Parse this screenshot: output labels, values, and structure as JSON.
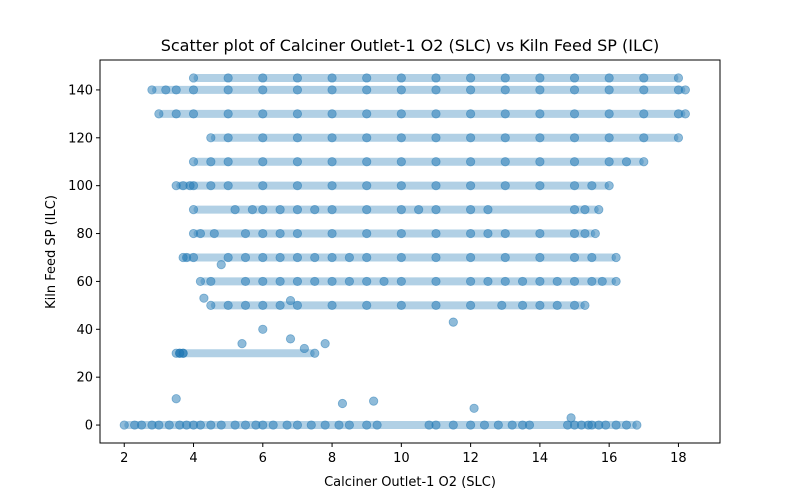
{
  "chart_data": {
    "type": "scatter",
    "title": "Scatter plot of Calciner Outlet-1 O2 (SLC) vs Kiln Feed  SP  (ILC)",
    "xlabel": "Calciner Outlet-1 O2 (SLC)",
    "ylabel": "Kiln Feed  SP  (ILC)",
    "xlim": [
      1.3,
      19.2
    ],
    "ylim": [
      -7.5,
      152.5
    ],
    "xticks": [
      2,
      4,
      6,
      8,
      10,
      12,
      14,
      16,
      18
    ],
    "yticks": [
      0,
      20,
      40,
      60,
      80,
      100,
      120,
      140
    ],
    "grid": false,
    "marker_color": "#1f77b4",
    "marker_alpha": 0.5,
    "series": [
      {
        "x": [
          2.0,
          2.3,
          2.5,
          2.8,
          3.0,
          3.3,
          3.6,
          3.8,
          4.0,
          4.2,
          4.5,
          4.8,
          5.2,
          5.5,
          5.8,
          6.0,
          6.3,
          6.7,
          7.0,
          7.4,
          7.8,
          8.2,
          8.5,
          9.0,
          9.3,
          10.8,
          11.0,
          11.5,
          12.0,
          12.4,
          12.8,
          13.2,
          13.5,
          13.7,
          14.8,
          15.0,
          15.2,
          15.4,
          15.5,
          15.7,
          15.9,
          16.2,
          16.5,
          16.8,
          3.6,
          3.7,
          3.7,
          4.5,
          5.0,
          5.5,
          6.0,
          6.5,
          7.0,
          8.0,
          9.0,
          10.0,
          11.0,
          12.0,
          12.9,
          13.5,
          14.0,
          14.5,
          15.0,
          15.3,
          4.2,
          4.5,
          5.5,
          6.0,
          6.5,
          7.0,
          7.5,
          8.0,
          8.5,
          9.0,
          9.5,
          10.0,
          11.0,
          12.0,
          12.5,
          13.0,
          13.5,
          14.0,
          14.5,
          15.0,
          15.5,
          15.8,
          16.2,
          3.7,
          3.8,
          4.0,
          5.0,
          5.5,
          6.0,
          6.5,
          7.0,
          7.5,
          8.0,
          8.5,
          9.0,
          10.0,
          11.0,
          12.0,
          13.0,
          14.0,
          15.0,
          15.5,
          16.2,
          4.0,
          4.2,
          4.6,
          5.5,
          6.0,
          6.5,
          7.0,
          8.0,
          9.0,
          10.0,
          11.0,
          12.0,
          12.5,
          13.0,
          14.0,
          15.0,
          15.3,
          15.6,
          4.0,
          5.2,
          5.7,
          6.0,
          6.5,
          7.0,
          7.5,
          8.0,
          9.0,
          10.0,
          10.5,
          11.0,
          12.0,
          12.5,
          15.0,
          15.3,
          15.7,
          3.5,
          3.7,
          3.9,
          4.0,
          4.5,
          5.0,
          6.0,
          7.0,
          8.0,
          9.0,
          10.0,
          11.0,
          12.0,
          13.0,
          14.0,
          15.0,
          15.5,
          16.0,
          4.0,
          4.5,
          5.0,
          6.0,
          7.0,
          8.0,
          9.0,
          10.0,
          11.0,
          12.0,
          13.0,
          14.0,
          15.0,
          16.0,
          16.5,
          17.0,
          4.5,
          5.0,
          6.0,
          7.0,
          8.0,
          9.0,
          10.0,
          11.0,
          12.0,
          13.0,
          14.0,
          15.0,
          16.0,
          17.0,
          18.0,
          3.0,
          3.5,
          4.0,
          5.0,
          6.0,
          7.0,
          8.0,
          9.0,
          10.0,
          11.0,
          12.0,
          13.0,
          14.0,
          15.0,
          16.0,
          17.0,
          18.0,
          18.2,
          2.8,
          3.2,
          3.5,
          4.0,
          5.0,
          6.0,
          7.0,
          8.0,
          9.0,
          10.0,
          11.0,
          12.0,
          13.0,
          14.0,
          15.0,
          16.0,
          17.0,
          18.0,
          18.2,
          4.0,
          5.0,
          6.0,
          7.0,
          8.0,
          9.0,
          10.0,
          11.0,
          12.0,
          13.0,
          14.0,
          15.0,
          16.0,
          17.0,
          18.0,
          3.5,
          3.6,
          5.4,
          6.0,
          6.8,
          7.2,
          7.5,
          7.8,
          9.2,
          3.5,
          4.3,
          4.8,
          6.8,
          8.3,
          11.5,
          12.1,
          14.9
        ],
        "y": [
          0,
          0,
          0,
          0,
          0,
          0,
          0,
          0,
          0,
          0,
          0,
          0,
          0,
          0,
          0,
          0,
          0,
          0,
          0,
          0,
          0,
          0,
          0,
          0,
          0,
          0,
          0,
          0,
          0,
          0,
          0,
          0,
          0,
          0,
          0,
          0,
          0,
          0,
          0,
          0,
          0,
          0,
          0,
          0,
          30,
          30,
          30,
          50,
          50,
          50,
          50,
          50,
          50,
          50,
          50,
          50,
          50,
          50,
          50,
          50,
          50,
          50,
          50,
          50,
          60,
          60,
          60,
          60,
          60,
          60,
          60,
          60,
          60,
          60,
          60,
          60,
          60,
          60,
          60,
          60,
          60,
          60,
          60,
          60,
          60,
          60,
          60,
          70,
          70,
          70,
          70,
          70,
          70,
          70,
          70,
          70,
          70,
          70,
          70,
          70,
          70,
          70,
          70,
          70,
          70,
          70,
          70,
          80,
          80,
          80,
          80,
          80,
          80,
          80,
          80,
          80,
          80,
          80,
          80,
          80,
          80,
          80,
          80,
          80,
          80,
          90,
          90,
          90,
          90,
          90,
          90,
          90,
          90,
          90,
          90,
          90,
          90,
          90,
          90,
          90,
          90,
          90,
          100,
          100,
          100,
          100,
          100,
          100,
          100,
          100,
          100,
          100,
          100,
          100,
          100,
          100,
          100,
          100,
          100,
          100,
          110,
          110,
          110,
          110,
          110,
          110,
          110,
          110,
          110,
          110,
          110,
          110,
          110,
          110,
          110,
          110,
          120,
          120,
          120,
          120,
          120,
          120,
          120,
          120,
          120,
          120,
          120,
          120,
          120,
          120,
          120,
          130,
          130,
          130,
          130,
          130,
          130,
          130,
          130,
          130,
          130,
          130,
          130,
          130,
          130,
          130,
          130,
          130,
          130,
          140,
          140,
          140,
          140,
          140,
          140,
          140,
          140,
          140,
          140,
          140,
          140,
          140,
          140,
          140,
          140,
          140,
          140,
          140,
          145,
          145,
          145,
          145,
          145,
          145,
          145,
          145,
          145,
          145,
          145,
          145,
          145,
          145,
          145,
          11,
          30,
          34,
          40,
          36,
          32,
          30,
          34,
          10,
          30,
          53,
          67,
          52,
          9,
          43,
          7,
          3
        ]
      }
    ]
  }
}
